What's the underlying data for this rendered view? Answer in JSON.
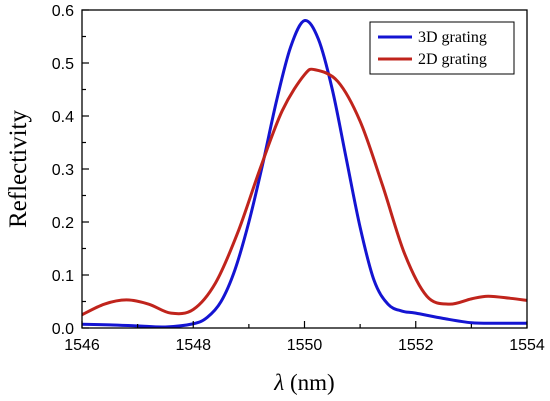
{
  "chart_data": {
    "type": "line",
    "xlabel_symbol": "λ",
    "xlabel_unit": " (nm)",
    "ylabel": "Reflectivity",
    "xlim": [
      1546,
      1554
    ],
    "ylim": [
      0,
      0.6
    ],
    "xticks": [
      1546,
      1548,
      1550,
      1552,
      1554
    ],
    "yticks": [
      0.0,
      0.1,
      0.2,
      0.3,
      0.4,
      0.5,
      0.6
    ],
    "ytick_labels": [
      "0.0",
      "0.1",
      "0.2",
      "0.3",
      "0.4",
      "0.5",
      "0.6"
    ],
    "legend_position": "top-right",
    "grid": false,
    "series": [
      {
        "name": "3D grating",
        "color": "#1414d2",
        "x": [
          1546,
          1546.5,
          1547,
          1547.5,
          1548,
          1548.25,
          1548.5,
          1548.75,
          1549,
          1549.25,
          1549.5,
          1549.75,
          1550,
          1550.25,
          1550.5,
          1550.75,
          1551,
          1551.25,
          1551.5,
          1551.75,
          1552,
          1552.5,
          1553,
          1553.5,
          1554
        ],
        "y": [
          0.007,
          0.006,
          0.004,
          0.002,
          0.008,
          0.02,
          0.05,
          0.11,
          0.2,
          0.31,
          0.43,
          0.53,
          0.58,
          0.545,
          0.45,
          0.32,
          0.19,
          0.09,
          0.045,
          0.032,
          0.028,
          0.018,
          0.01,
          0.009,
          0.009
        ]
      },
      {
        "name": "2D grating",
        "color": "#c0241c",
        "x": [
          1546,
          1546.4,
          1546.8,
          1547.2,
          1547.6,
          1548,
          1548.4,
          1548.8,
          1549.2,
          1549.6,
          1550,
          1550.2,
          1550.6,
          1551,
          1551.4,
          1551.8,
          1552.2,
          1552.6,
          1553,
          1553.3,
          1553.7,
          1554
        ],
        "y": [
          0.025,
          0.045,
          0.053,
          0.045,
          0.028,
          0.035,
          0.085,
          0.18,
          0.3,
          0.41,
          0.478,
          0.487,
          0.465,
          0.39,
          0.27,
          0.14,
          0.06,
          0.045,
          0.055,
          0.06,
          0.056,
          0.052
        ]
      }
    ]
  }
}
